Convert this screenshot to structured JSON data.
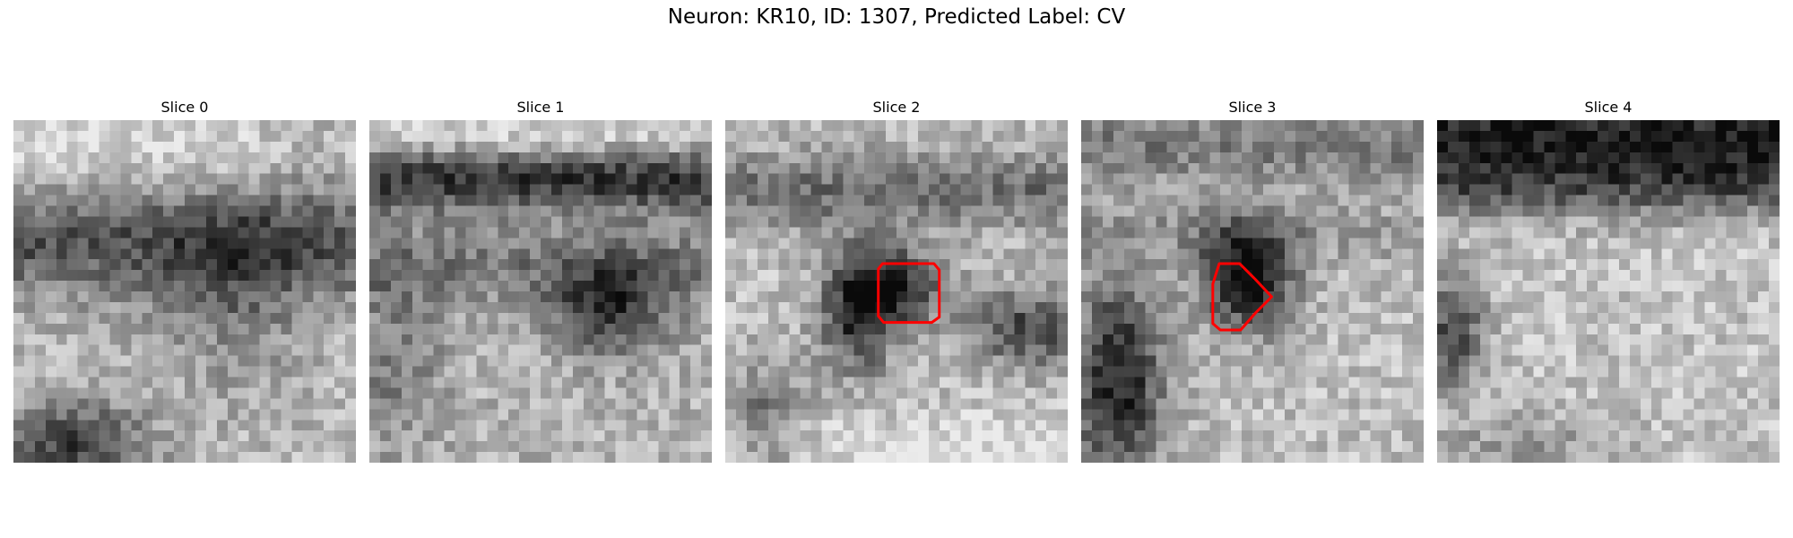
{
  "figure": {
    "title": "Neuron: KR10, ID: 1307, Predicted Label: CV"
  },
  "slices": [
    {
      "label": "Slice 0",
      "has_roi": false
    },
    {
      "label": "Slice 1",
      "has_roi": false
    },
    {
      "label": "Slice 2",
      "has_roi": true
    },
    {
      "label": "Slice 3",
      "has_roi": true
    },
    {
      "label": "Slice 4",
      "has_roi": false
    }
  ],
  "colors": {
    "roi_outline": "#ff0000",
    "colormap": "gray"
  }
}
